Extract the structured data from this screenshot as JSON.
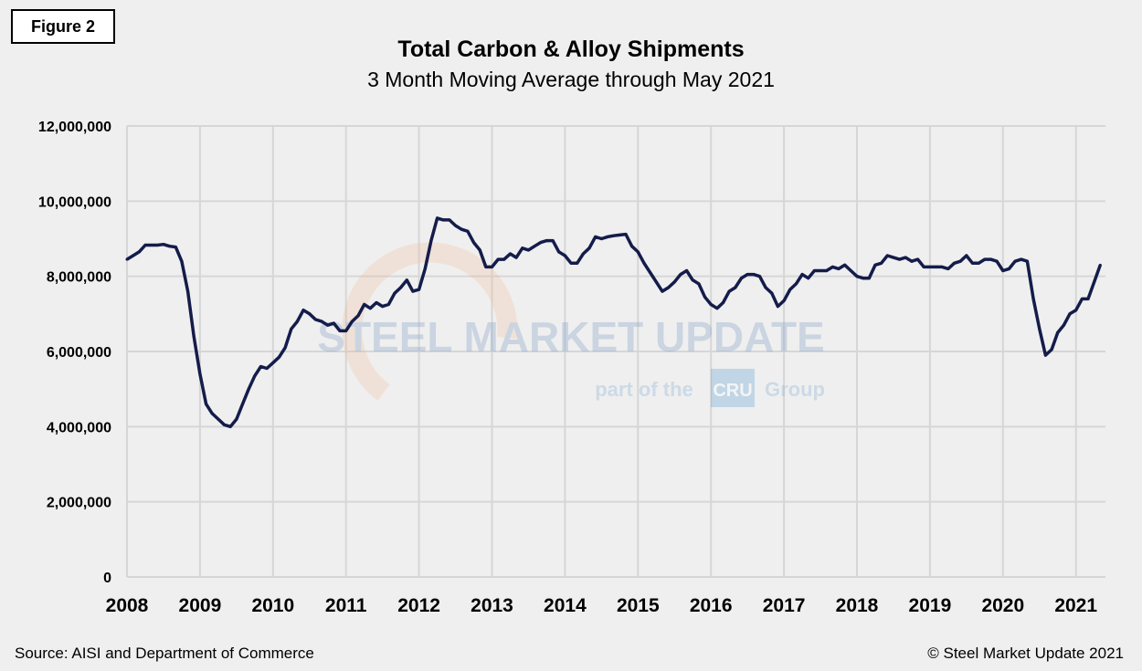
{
  "figure_label": "Figure 2",
  "footer": {
    "source": "Source: AISI and Department of Commerce",
    "copyright": "© Steel Market Update 2021"
  },
  "watermark": {
    "brand": "STEEL MARKET UPDATE",
    "tagline_pre": "part of the",
    "tagline_logo": "CRU",
    "tagline_post": "Group"
  },
  "colors": {
    "line": "#141c4a",
    "grid": "#d6d6d6",
    "background": "#efefef"
  },
  "chart_data": {
    "type": "line",
    "title": "Total Carbon & Alloy Shipments",
    "subtitle": "3 Month Moving Average through May 2021",
    "xlabel": "",
    "ylabel": "",
    "start": "2008-01",
    "end": "2021-05",
    "frequency": "monthly",
    "ylim": [
      0,
      12000000
    ],
    "grid": true,
    "y_ticks": [
      "0",
      "2,000,000",
      "4,000,000",
      "6,000,000",
      "8,000,000",
      "10,000,000",
      "12,000,000"
    ],
    "x_ticks": [
      "2008",
      "2009",
      "2010",
      "2011",
      "2012",
      "2013",
      "2014",
      "2015",
      "2016",
      "2017",
      "2018",
      "2019",
      "2020",
      "2021"
    ],
    "values": [
      8450000,
      8550000,
      8650000,
      8830000,
      8830000,
      8830000,
      8850000,
      8800000,
      8780000,
      8400000,
      7600000,
      6400000,
      5400000,
      4600000,
      4350000,
      4200000,
      4050000,
      4000000,
      4200000,
      4600000,
      5000000,
      5350000,
      5600000,
      5550000,
      5700000,
      5850000,
      6100000,
      6600000,
      6800000,
      7100000,
      7000000,
      6850000,
      6800000,
      6700000,
      6750000,
      6550000,
      6550000,
      6800000,
      6950000,
      7250000,
      7150000,
      7300000,
      7200000,
      7250000,
      7550000,
      7700000,
      7900000,
      7600000,
      7650000,
      8200000,
      8950000,
      9550000,
      9500000,
      9500000,
      9350000,
      9250000,
      9200000,
      8900000,
      8700000,
      8250000,
      8250000,
      8450000,
      8450000,
      8600000,
      8500000,
      8750000,
      8700000,
      8800000,
      8900000,
      8950000,
      8950000,
      8650000,
      8550000,
      8350000,
      8350000,
      8600000,
      8750000,
      9050000,
      9000000,
      9050000,
      9080000,
      9100000,
      9120000,
      8800000,
      8650000,
      8350000,
      8100000,
      7850000,
      7600000,
      7700000,
      7850000,
      8050000,
      8150000,
      7900000,
      7800000,
      7450000,
      7250000,
      7150000,
      7300000,
      7600000,
      7700000,
      7950000,
      8050000,
      8050000,
      8000000,
      7700000,
      7550000,
      7200000,
      7350000,
      7650000,
      7800000,
      8050000,
      7950000,
      8150000,
      8150000,
      8150000,
      8250000,
      8200000,
      8300000,
      8150000,
      8000000,
      7950000,
      7950000,
      8300000,
      8350000,
      8550000,
      8500000,
      8450000,
      8500000,
      8400000,
      8450000,
      8250000,
      8250000,
      8250000,
      8250000,
      8200000,
      8350000,
      8400000,
      8550000,
      8350000,
      8350000,
      8450000,
      8450000,
      8400000,
      8150000,
      8200000,
      8400000,
      8450000,
      8400000,
      7400000,
      6600000,
      5900000,
      6050000,
      6500000,
      6700000,
      7000000,
      7100000,
      7400000,
      7400000,
      7850000,
      8300000
    ]
  }
}
